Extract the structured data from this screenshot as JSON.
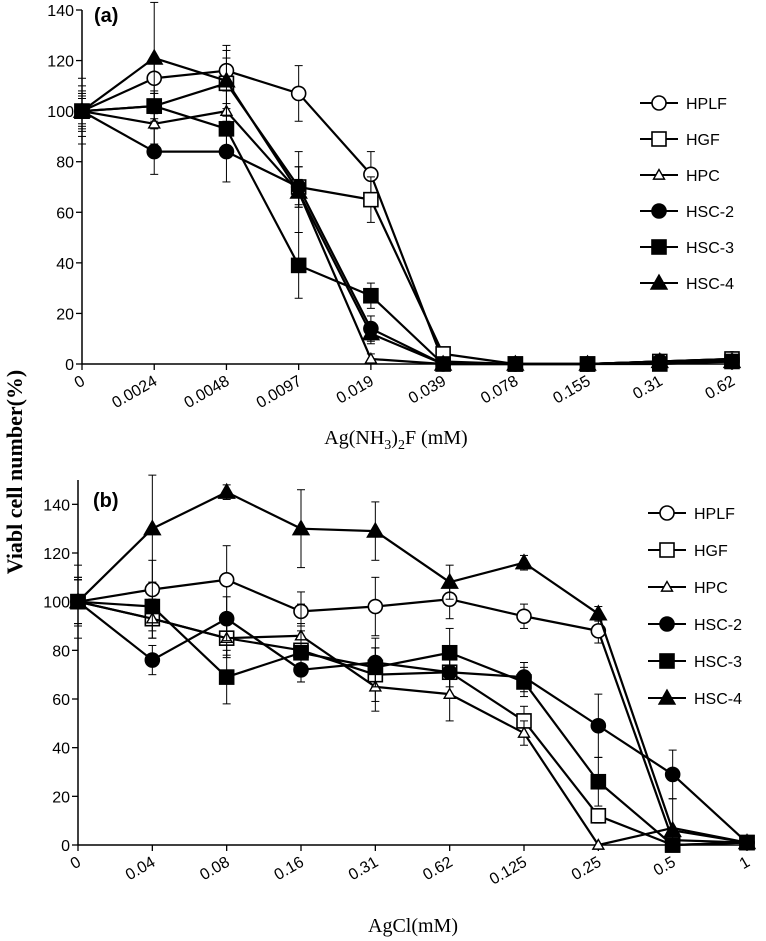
{
  "shared_ylabel": "Viabl cell number(%)",
  "chart_data": [
    {
      "type": "line",
      "panel_label": "(a)",
      "title": "",
      "xlabel": "Ag(NH3)2F  (mM)",
      "xlabel_parts": {
        "pre": "Ag(NH",
        "sub1": "3",
        "mid": ")",
        "sub2": "2",
        "post": "F  (mM)"
      },
      "ylabel": "Viabl cell number(%)",
      "categories": [
        "0",
        "0.0024",
        "0.0048",
        "0.0097",
        "0.019",
        "0.039",
        "0.078",
        "0.155",
        "0.31",
        "0.62"
      ],
      "ylim": [
        0,
        140
      ],
      "yticks": [
        0,
        20,
        40,
        60,
        80,
        100,
        120,
        140
      ],
      "legend_position": "right",
      "series": [
        {
          "name": "HPLF",
          "marker": "circle-open",
          "values": [
            100,
            113,
            116,
            107,
            75,
            1,
            0,
            0,
            1,
            2
          ],
          "errors": [
            8,
            6,
            8,
            11,
            9,
            1,
            0,
            0,
            0,
            0
          ]
        },
        {
          "name": "HGF",
          "marker": "square-open",
          "values": [
            100,
            102,
            111,
            70,
            65,
            4,
            0,
            0,
            1,
            2
          ],
          "errors": [
            7,
            5,
            10,
            8,
            9,
            1,
            0,
            0,
            0,
            0
          ]
        },
        {
          "name": "HPC",
          "marker": "triangle-open",
          "values": [
            100,
            95,
            100,
            68,
            2,
            0,
            0,
            0,
            1,
            2
          ],
          "errors": [
            10,
            8,
            8,
            16,
            2,
            0,
            0,
            0,
            0,
            0
          ]
        },
        {
          "name": "HSC-2",
          "marker": "circle-filled",
          "values": [
            100,
            84,
            84,
            70,
            14,
            0,
            0,
            0,
            1,
            1
          ],
          "errors": [
            13,
            9,
            12,
            8,
            5,
            0,
            0,
            0,
            0,
            0
          ]
        },
        {
          "name": "HSC-3",
          "marker": "square-filled",
          "values": [
            100,
            102,
            93,
            39,
            27,
            0,
            0,
            0,
            0,
            1
          ],
          "errors": [
            5,
            6,
            10,
            13,
            5,
            0,
            0,
            0,
            0,
            0
          ]
        },
        {
          "name": "HSC-4",
          "marker": "triangle-filled",
          "values": [
            100,
            121,
            112,
            68,
            12,
            0,
            0,
            0,
            1,
            1
          ],
          "errors": [
            6,
            22,
            14,
            5,
            4,
            0,
            0,
            0,
            0,
            0
          ]
        }
      ]
    },
    {
      "type": "line",
      "panel_label": "(b)",
      "title": "",
      "xlabel": "AgCl(mM)",
      "ylabel": "Viabl cell number(%)",
      "categories": [
        "0",
        "0.04",
        "0.08",
        "0.16",
        "0.31",
        "0.62",
        "0.125",
        "0.25",
        "0.5",
        "1"
      ],
      "ylim": [
        0,
        150
      ],
      "yticks": [
        0,
        20,
        40,
        60,
        80,
        100,
        120,
        140
      ],
      "legend_position": "right",
      "series": [
        {
          "name": "HPLF",
          "marker": "circle-open",
          "values": [
            100,
            105,
            109,
            96,
            98,
            101,
            94,
            88,
            2,
            1
          ],
          "errors": [
            9,
            12,
            14,
            8,
            12,
            8,
            5,
            5,
            2,
            0
          ]
        },
        {
          "name": "HGF",
          "marker": "square-open",
          "values": [
            100,
            93,
            85,
            80,
            70,
            71,
            51,
            12,
            0,
            1
          ],
          "errors": [
            10,
            8,
            7,
            10,
            11,
            9,
            6,
            3,
            0,
            0
          ]
        },
        {
          "name": "HPC",
          "marker": "triangle-open",
          "values": [
            100,
            93,
            85,
            86,
            65,
            62,
            46,
            0,
            7,
            1
          ],
          "errors": [
            10,
            8,
            8,
            13,
            10,
            11,
            5,
            0,
            12,
            0
          ]
        },
        {
          "name": "HSC-2",
          "marker": "circle-filled",
          "values": [
            100,
            76,
            93,
            72,
            75,
            71,
            69,
            49,
            29,
            1
          ],
          "errors": [
            9,
            6,
            9,
            5,
            10,
            6,
            6,
            13,
            10,
            0
          ]
        },
        {
          "name": "HSC-3",
          "marker": "square-filled",
          "values": [
            100,
            98,
            69,
            79,
            73,
            79,
            67,
            26,
            0,
            1
          ],
          "errors": [
            9,
            10,
            11,
            12,
            8,
            10,
            6,
            10,
            0,
            0
          ]
        },
        {
          "name": "HSC-4",
          "marker": "triangle-filled",
          "values": [
            100,
            130,
            145,
            130,
            129,
            108,
            116,
            95,
            6,
            1
          ],
          "errors": [
            15,
            22,
            3,
            16,
            12,
            7,
            3,
            3,
            0,
            0
          ]
        }
      ]
    }
  ]
}
